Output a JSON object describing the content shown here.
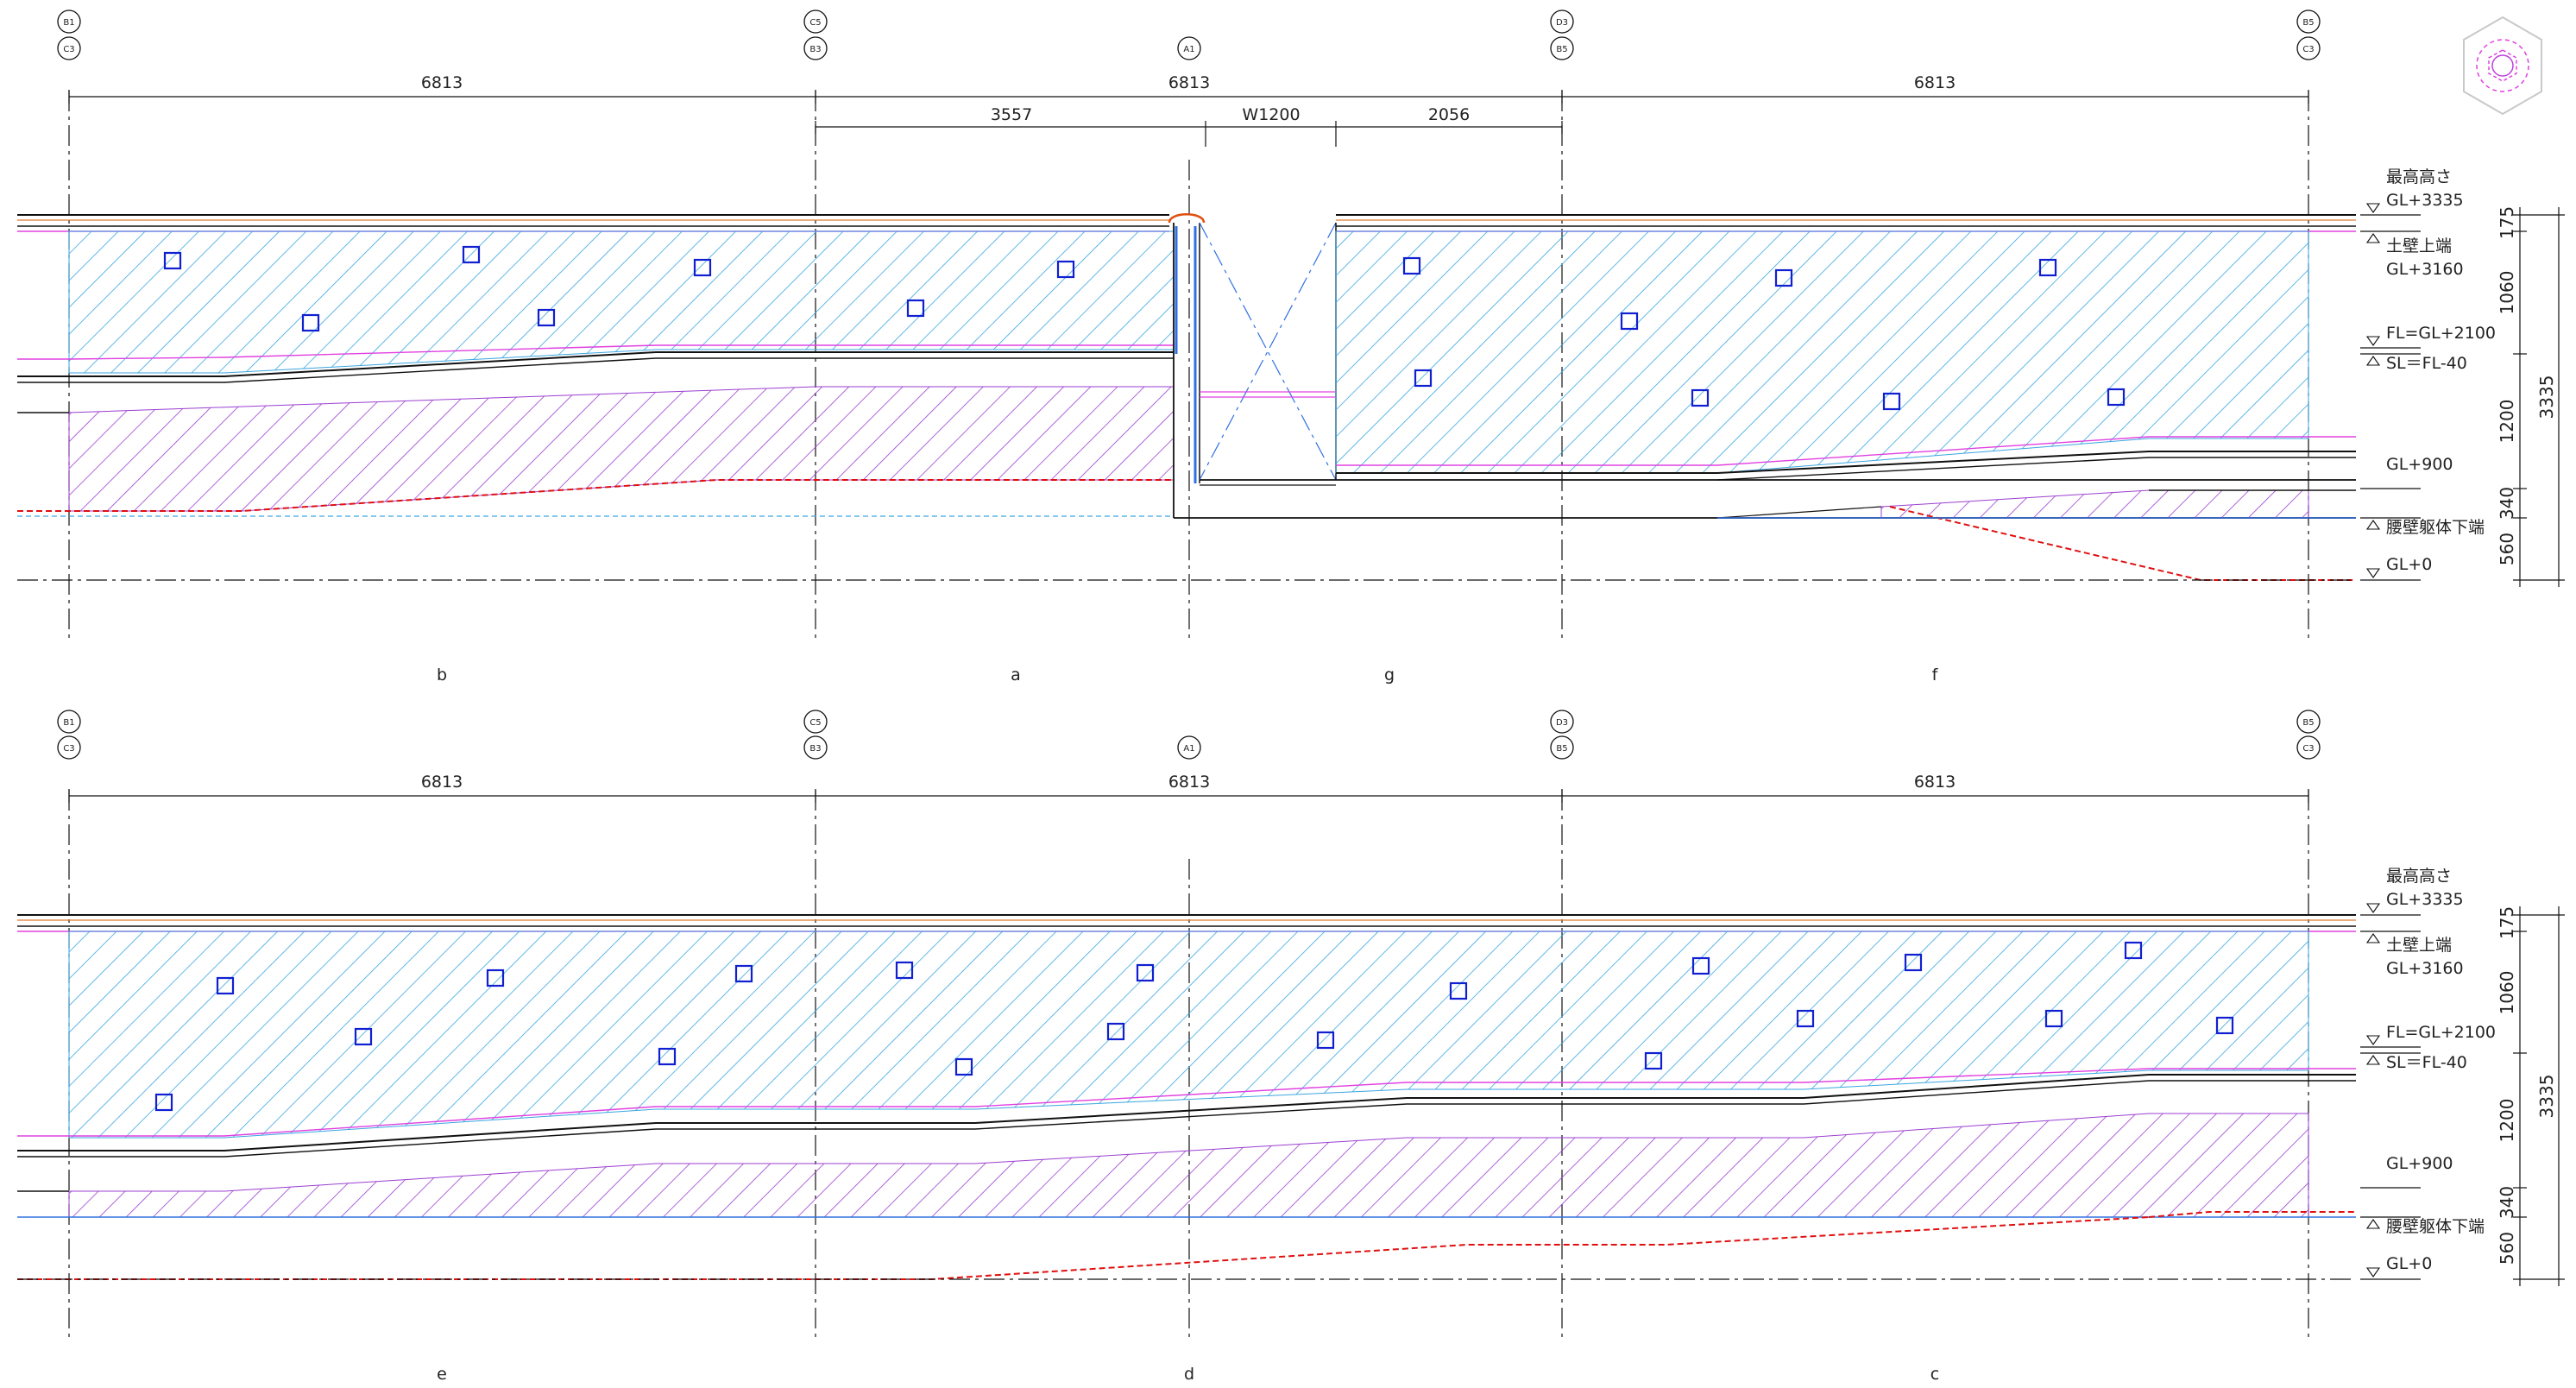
{
  "colors": {
    "hatch_blue": "#3aa6e0",
    "hatch_purple": "#9b3fd0",
    "magenta": "#e040e0",
    "orange": "#e07a30",
    "red_dashed": "#e01010",
    "blue_line": "#3070e0",
    "square_blue": "#1020d0",
    "line": "#111111"
  },
  "top": {
    "grid_tags": [
      {
        "id": "b1c3",
        "top": "B1",
        "bottom": "C3"
      },
      {
        "id": "c5b3",
        "top": "C5",
        "bottom": "B3"
      },
      {
        "id": "a1",
        "top": "A1",
        "bottom": ""
      },
      {
        "id": "d3b5",
        "top": "D3",
        "bottom": "B5"
      },
      {
        "id": "b5c3",
        "top": "B5",
        "bottom": "C3"
      }
    ],
    "dims": [
      "6813",
      "6813",
      "6813"
    ],
    "sub_dims": [
      "3557",
      "W1200",
      "2056"
    ],
    "elevation_labels": [
      "b",
      "a",
      "g",
      "f"
    ],
    "levels": {
      "max_title": "最高高さ",
      "max_value": "GL+3335",
      "wall_title": "土壁上端",
      "wall_value": "GL+3160",
      "fl": "FL=GL+2100",
      "sl": "SL＝FL-40",
      "gl900": "GL+900",
      "waist": "腰壁躯体下端",
      "gl0": "GL+0"
    },
    "right_dims": [
      "175",
      "1060",
      "1200",
      "340",
      "560"
    ],
    "total_dim": "3335"
  },
  "bottom": {
    "grid_tags": [
      {
        "id": "b1c3",
        "top": "B1",
        "bottom": "C3"
      },
      {
        "id": "c5b3",
        "top": "C5",
        "bottom": "B3"
      },
      {
        "id": "a1",
        "top": "A1",
        "bottom": ""
      },
      {
        "id": "d3b5",
        "top": "D3",
        "bottom": "B5"
      },
      {
        "id": "b5c3",
        "top": "B5",
        "bottom": "C3"
      }
    ],
    "dims": [
      "6813",
      "6813",
      "6813"
    ],
    "elevation_labels": [
      "e",
      "d",
      "c"
    ],
    "levels": {
      "max_title": "最高高さ",
      "max_value": "GL+3335",
      "wall_title": "土壁上端",
      "wall_value": "GL+3160",
      "fl": "FL=GL+2100",
      "sl": "SL＝FL-40",
      "gl900": "GL+900",
      "waist": "腰壁躯体下端",
      "gl0": "GL+0"
    },
    "right_dims": [
      "175",
      "1060",
      "1200",
      "340",
      "560"
    ],
    "total_dim": "3335"
  }
}
